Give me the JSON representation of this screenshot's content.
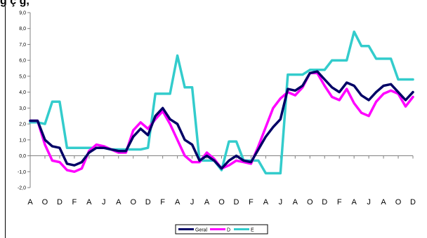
{
  "title_fragment": "g          ç         g,",
  "colors": {
    "geral": "#000066",
    "d": "#ff00ff",
    "e": "#33cccc",
    "axis": "#808080"
  },
  "chart_data": {
    "type": "line",
    "title": "",
    "xlabel": "",
    "ylabel": "",
    "ylim": [
      -2.0,
      9.0
    ],
    "y_ticks": [
      "-2,0",
      "-1,0",
      "0,0",
      "1,0",
      "2,0",
      "3,0",
      "4,0",
      "5,0",
      "6,0",
      "7,0",
      "8,0",
      "9,0"
    ],
    "x_tick_labels": [
      "A",
      "O",
      "D",
      "F",
      "A",
      "J",
      "A",
      "O",
      "D",
      "F",
      "A",
      "J",
      "A",
      "O",
      "D",
      "F",
      "A",
      "J",
      "A",
      "O",
      "D",
      "F",
      "A",
      "J",
      "A",
      "O",
      "D"
    ],
    "grid": false,
    "legend_position": "bottom",
    "series": [
      {
        "name": "Geral",
        "values": [
          2.2,
          2.2,
          1.0,
          0.6,
          0.5,
          -0.5,
          -0.6,
          -0.4,
          0.2,
          0.5,
          0.5,
          0.4,
          0.3,
          0.3,
          1.2,
          1.7,
          1.3,
          2.5,
          3.0,
          2.3,
          2.0,
          1.0,
          0.7,
          -0.3,
          0.0,
          -0.3,
          -0.8,
          -0.3,
          0.0,
          -0.3,
          -0.4,
          0.4,
          1.2,
          1.8,
          2.3,
          4.2,
          4.1,
          4.4,
          5.2,
          5.3,
          4.8,
          4.3,
          4.0,
          4.6,
          4.4,
          3.8,
          3.5,
          4.0,
          4.4,
          4.5,
          4.0,
          3.5,
          4.0
        ]
      },
      {
        "name": "D",
        "values": [
          2.2,
          2.2,
          0.7,
          -0.3,
          -0.4,
          -0.9,
          -1.0,
          -0.8,
          0.3,
          0.7,
          0.6,
          0.4,
          0.2,
          0.2,
          1.6,
          2.1,
          1.7,
          2.3,
          2.8,
          2.0,
          1.0,
          0.0,
          -0.4,
          -0.4,
          0.2,
          -0.2,
          -0.8,
          -0.6,
          -0.3,
          -0.4,
          -0.5,
          0.6,
          1.8,
          3.0,
          3.6,
          4.0,
          3.8,
          4.3,
          5.2,
          5.2,
          4.4,
          3.7,
          3.5,
          4.2,
          3.3,
          2.7,
          2.5,
          3.4,
          3.9,
          4.1,
          3.9,
          3.1,
          3.7
        ]
      },
      {
        "name": "E",
        "values": [
          2.1,
          2.1,
          2.0,
          3.4,
          3.4,
          0.5,
          0.5,
          0.5,
          0.5,
          0.5,
          0.5,
          0.4,
          0.4,
          0.4,
          0.4,
          0.4,
          0.5,
          3.9,
          3.9,
          3.9,
          6.3,
          4.3,
          4.3,
          -0.3,
          -0.3,
          -0.3,
          -0.9,
          0.9,
          0.9,
          -0.3,
          -0.3,
          -0.3,
          -1.1,
          -1.1,
          -1.1,
          5.1,
          5.1,
          5.1,
          5.4,
          5.4,
          5.4,
          6.0,
          6.0,
          6.0,
          7.8,
          6.9,
          6.9,
          6.1,
          6.1,
          6.1,
          4.8,
          4.8,
          4.8
        ]
      }
    ]
  }
}
